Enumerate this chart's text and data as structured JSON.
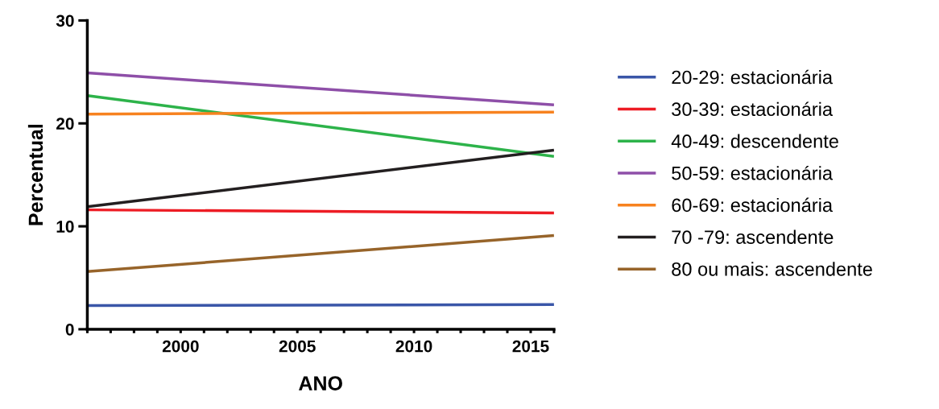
{
  "chart_data": {
    "type": "line",
    "xlabel": "ANO",
    "ylabel": "Percentual",
    "x": [
      1996,
      2016
    ],
    "series": [
      {
        "name": "20-29: estacionária",
        "color": "#3a56a8",
        "values": [
          2.3,
          2.4
        ]
      },
      {
        "name": "30-39: estacionária",
        "color": "#ed1c24",
        "values": [
          11.6,
          11.3
        ]
      },
      {
        "name": "40-49: descendente",
        "color": "#2db34a",
        "values": [
          22.7,
          16.8
        ]
      },
      {
        "name": "50-59: estacionária",
        "color": "#8e4fa8",
        "values": [
          24.9,
          21.8
        ]
      },
      {
        "name": "60-69: estacionária",
        "color": "#f7821f",
        "values": [
          20.9,
          21.1
        ]
      },
      {
        "name": "70 -79: ascendente",
        "color": "#231f20",
        "values": [
          11.9,
          17.4
        ]
      },
      {
        "name": "80 ou mais: ascendente",
        "color": "#97642a",
        "values": [
          5.6,
          9.1
        ]
      }
    ],
    "xlim": [
      1996,
      2016
    ],
    "xticks": [
      {
        "value": 1996,
        "label": null
      },
      {
        "value": 1997,
        "label": null
      },
      {
        "value": 1998,
        "label": null
      },
      {
        "value": 1999,
        "label": null
      },
      2000,
      {
        "value": 2001,
        "label": null
      },
      {
        "value": 2002,
        "label": null
      },
      {
        "value": 2003,
        "label": null
      },
      {
        "value": 2004,
        "label": null
      },
      2005,
      {
        "value": 2006,
        "label": null
      },
      {
        "value": 2007,
        "label": null
      },
      {
        "value": 2008,
        "label": null
      },
      {
        "value": 2009,
        "label": null
      },
      2010,
      {
        "value": 2011,
        "label": null
      },
      {
        "value": 2012,
        "label": null
      },
      {
        "value": 2013,
        "label": null
      },
      {
        "value": 2014,
        "label": null
      },
      2015,
      {
        "value": 2016,
        "label": null
      }
    ],
    "ylim": [
      0,
      30
    ],
    "yticks": [
      0,
      10,
      20,
      30
    ],
    "grid": false,
    "legend": "right",
    "marker": "none",
    "line_style": "solid"
  }
}
